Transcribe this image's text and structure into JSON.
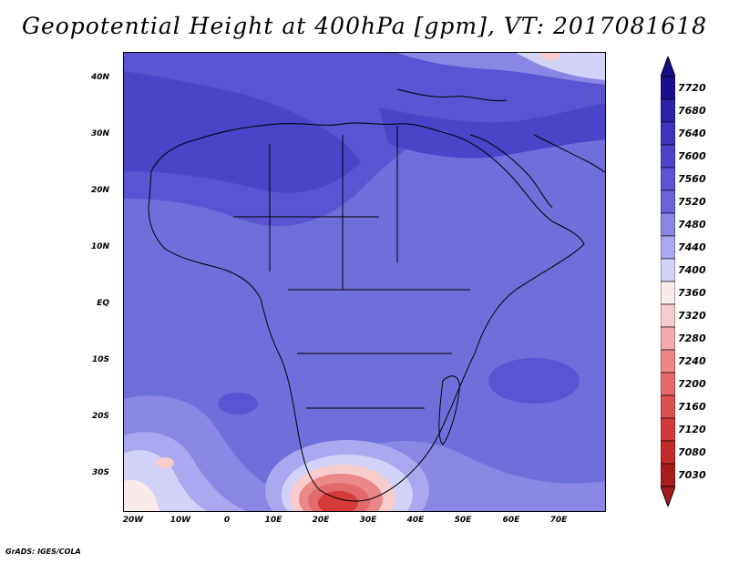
{
  "title": "Geopotential Height at 400hPa [gpm], VT: 2017081618",
  "credit": "GrADS: IGES/COLA",
  "lat_labels": [
    "40N",
    "30N",
    "20N",
    "10N",
    "EQ",
    "10S",
    "20S",
    "30S"
  ],
  "lon_labels": [
    "20W",
    "10W",
    "0",
    "10E",
    "20E",
    "30E",
    "40E",
    "50E",
    "60E",
    "70E"
  ],
  "colorbar": {
    "levels": [
      "7720",
      "7680",
      "7640",
      "7600",
      "7560",
      "7520",
      "7480",
      "7440",
      "7400",
      "7360",
      "7320",
      "7280",
      "7240",
      "7200",
      "7160",
      "7120",
      "7080",
      "7030"
    ],
    "colors": [
      "#1a0e8a",
      "#2a22a8",
      "#3a34bc",
      "#4a44c8",
      "#5a54d2",
      "#6a64da",
      "#8a86e4",
      "#aaa8ee",
      "#d2d2f8",
      "#fbeaea",
      "#f8cccc",
      "#f2aaaa",
      "#ea8888",
      "#e26a6a",
      "#dc5050",
      "#d43a3a",
      "#c42a2a",
      "#a81c1c"
    ]
  },
  "fields": {
    "base_color": "#6f6fdc",
    "high_color": "#4a44c8",
    "mid_high_color": "#5a54d2",
    "low_light": "#aaa8ee",
    "low_pale": "#d2d2f8",
    "low_red": "#e26a6a",
    "coast_color": "#000000"
  }
}
